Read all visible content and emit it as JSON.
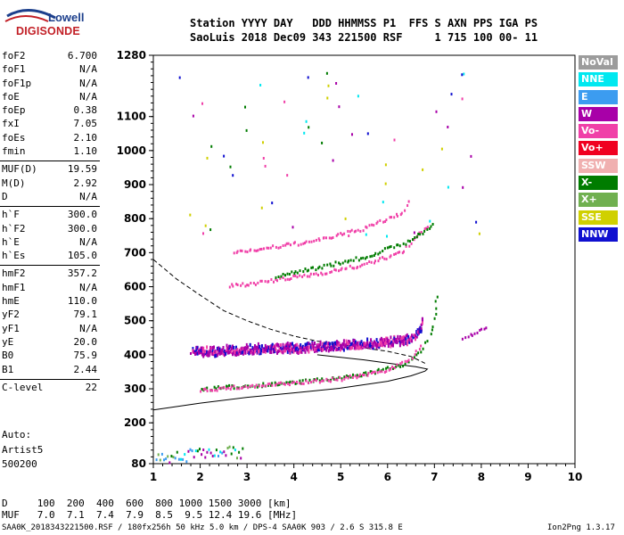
{
  "logo": {
    "line1": "Lowell",
    "line2": "DIGISONDE"
  },
  "header": {
    "line1": "Station YYYY DAY   DDD HHMMSS P1  FFS S AXN PPS IGA PS",
    "line2": "SaoLuis 2018 Dec09 343 221500 RSF     1 715 100 00- 11"
  },
  "params": [
    {
      "group": [
        {
          "k": "foF2",
          "v": "6.700"
        },
        {
          "k": "foF1",
          "v": "N/A"
        },
        {
          "k": "foF1p",
          "v": "N/A"
        },
        {
          "k": "foE",
          "v": "N/A"
        },
        {
          "k": "foEp",
          "v": "0.38"
        },
        {
          "k": "fxI",
          "v": "7.05"
        },
        {
          "k": "foEs",
          "v": "2.10"
        },
        {
          "k": "fmin",
          "v": "1.10"
        }
      ]
    },
    {
      "group": [
        {
          "k": "MUF(D)",
          "v": "19.59"
        },
        {
          "k": "M(D)",
          "v": "2.92"
        },
        {
          "k": "D",
          "v": "N/A"
        }
      ]
    },
    {
      "group": [
        {
          "k": "h`F",
          "v": "300.0"
        },
        {
          "k": "h`F2",
          "v": "300.0"
        },
        {
          "k": "h`E",
          "v": "N/A"
        },
        {
          "k": "h`Es",
          "v": "105.0"
        }
      ]
    },
    {
      "group": [
        {
          "k": "hmF2",
          "v": "357.2"
        },
        {
          "k": "hmF1",
          "v": "N/A"
        },
        {
          "k": "hmE",
          "v": "110.0"
        },
        {
          "k": "yF2",
          "v": "79.1"
        },
        {
          "k": "yF1",
          "v": "N/A"
        },
        {
          "k": "yE",
          "v": "20.0"
        },
        {
          "k": "B0",
          "v": "75.9"
        },
        {
          "k": "B1",
          "v": "2.44"
        }
      ]
    },
    {
      "group": [
        {
          "k": "C-level",
          "v": "22"
        }
      ]
    }
  ],
  "auto": {
    "line1": "Auto:",
    "line2": "Artist5",
    "line3": "500200"
  },
  "legend": [
    {
      "label": "NoVal",
      "color": "#9c9c9c"
    },
    {
      "label": "NNE",
      "color": "#00e8f0"
    },
    {
      "label": "E",
      "color": "#3c9cf0"
    },
    {
      "label": "W",
      "color": "#a800a8"
    },
    {
      "label": "Vo-",
      "color": "#f040a8"
    },
    {
      "label": "Vo+",
      "color": "#f00020"
    },
    {
      "label": "SSW",
      "color": "#f0b0b0"
    },
    {
      "label": "X-",
      "color": "#007c00"
    },
    {
      "label": "X+",
      "color": "#70b050"
    },
    {
      "label": "SSE",
      "color": "#d0d000"
    },
    {
      "label": "NNW",
      "color": "#1010d0"
    }
  ],
  "footer": {
    "d_line": "D     100  200  400  600  800 1000 1500 3000 [km]",
    "muf_line": "MUF   7.0  7.1  7.4  7.9  8.5  9.5 12.4 19.6 [MHz]",
    "file_line": "SAA0K_2018343221500.RSF / 180fx256h 50 kHz 5.0 km / DPS-4 SAA0K 903 / 2.6 S 315.8 E",
    "version": "Ion2Png 1.3.17"
  },
  "chart_data": {
    "type": "scatter",
    "xlim": [
      1,
      10
    ],
    "ylim": [
      80,
      1280
    ],
    "x_ticks": [
      "1",
      "2",
      "3",
      "4",
      "5",
      "6",
      "7",
      "8",
      "9",
      "10"
    ],
    "y_ticks": [
      "80",
      "200",
      "300",
      "400",
      "500",
      "600",
      "700",
      "800",
      "900",
      "1000",
      "1100",
      "1280"
    ],
    "series": [
      {
        "name": "W",
        "trace": [
          [
            1.8,
            412
          ],
          [
            2.0,
            410
          ],
          [
            2.5,
            412
          ],
          [
            3.0,
            415
          ],
          [
            3.5,
            418
          ],
          [
            4.0,
            420
          ],
          [
            4.5,
            424
          ],
          [
            5.0,
            428
          ],
          [
            5.5,
            432
          ],
          [
            6.0,
            438
          ],
          [
            6.4,
            445
          ],
          [
            6.6,
            460
          ],
          [
            6.7,
            480
          ],
          [
            6.75,
            510
          ]
        ]
      },
      {
        "name": "X-",
        "trace": [
          [
            2.0,
            302
          ],
          [
            3.0,
            312
          ],
          [
            4.0,
            322
          ],
          [
            5.0,
            335
          ],
          [
            5.6,
            350
          ],
          [
            6.0,
            362
          ],
          [
            6.4,
            380
          ],
          [
            6.7,
            410
          ],
          [
            6.9,
            460
          ],
          [
            7.0,
            520
          ],
          [
            7.05,
            595
          ]
        ]
      },
      {
        "name": "Vo-",
        "trace": [
          [
            2.0,
            300
          ],
          [
            3.0,
            310
          ],
          [
            4.0,
            320
          ],
          [
            5.0,
            333
          ],
          [
            5.5,
            345
          ],
          [
            6.0,
            360
          ],
          [
            6.3,
            378
          ],
          [
            6.55,
            400
          ],
          [
            6.75,
            440
          ]
        ]
      },
      {
        "name": "Vo-",
        "trace": [
          [
            2.6,
            605
          ],
          [
            3.5,
            620
          ],
          [
            4.5,
            642
          ],
          [
            5.5,
            668
          ],
          [
            6.3,
            705
          ],
          [
            6.9,
            790
          ]
        ]
      },
      {
        "name": "Vo-",
        "trace": [
          [
            2.7,
            705
          ],
          [
            3.5,
            718
          ],
          [
            4.5,
            740
          ],
          [
            5.5,
            775
          ],
          [
            6.3,
            820
          ],
          [
            6.5,
            860
          ]
        ]
      },
      {
        "name": "X-",
        "trace": [
          [
            3.6,
            635
          ],
          [
            4.5,
            660
          ],
          [
            5.5,
            690
          ],
          [
            6.5,
            740
          ],
          [
            7.0,
            790
          ]
        ]
      },
      {
        "name": "W",
        "trace": [
          [
            7.6,
            450
          ],
          [
            7.9,
            470
          ],
          [
            8.15,
            490
          ]
        ]
      }
    ],
    "model_curves": [
      {
        "style": "solid",
        "trace": [
          [
            1.0,
            238
          ],
          [
            2.0,
            258
          ],
          [
            3.0,
            275
          ],
          [
            4.0,
            288
          ],
          [
            5.0,
            302
          ],
          [
            6.0,
            322
          ],
          [
            6.5,
            338
          ],
          [
            6.8,
            352
          ],
          [
            6.85,
            358
          ],
          [
            6.6,
            365
          ],
          [
            6.2,
            372
          ],
          [
            5.5,
            385
          ],
          [
            4.5,
            400
          ]
        ]
      },
      {
        "style": "dashed",
        "trace": [
          [
            1.0,
            680
          ],
          [
            1.5,
            622
          ],
          [
            2.0,
            575
          ],
          [
            2.5,
            530
          ],
          [
            3.0,
            500
          ],
          [
            3.5,
            475
          ],
          [
            4.0,
            455
          ],
          [
            4.5,
            440
          ],
          [
            5.0,
            430
          ],
          [
            5.5,
            420
          ],
          [
            6.0,
            410
          ],
          [
            6.5,
            395
          ],
          [
            6.8,
            375
          ]
        ]
      }
    ]
  }
}
